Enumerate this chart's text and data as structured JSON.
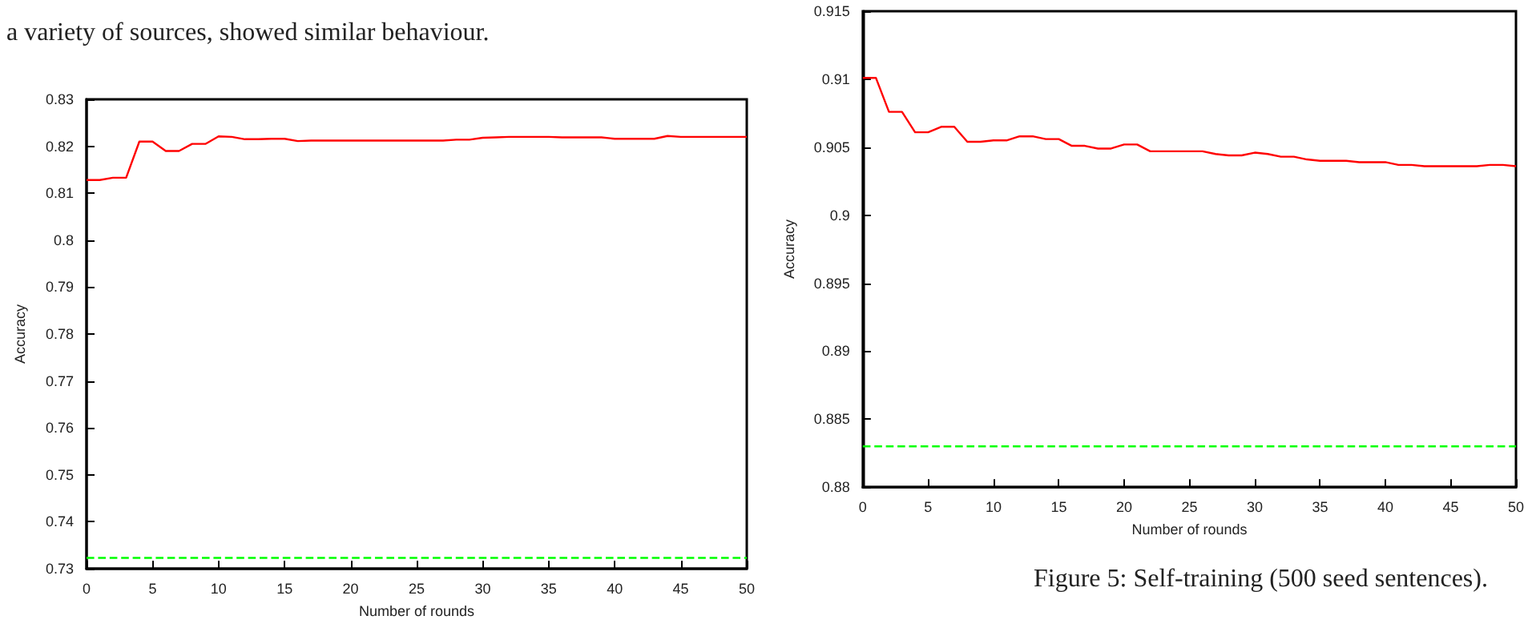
{
  "chart_data": [
    {
      "type": "line",
      "xlabel": "Number of rounds",
      "ylabel": "Accuracy",
      "annotations": [
        "a variety of sources, showed similar behaviour."
      ],
      "x": [
        0,
        1,
        2,
        3,
        4,
        5,
        6,
        7,
        8,
        9,
        10,
        11,
        12,
        13,
        14,
        15,
        16,
        17,
        18,
        19,
        20,
        21,
        22,
        23,
        24,
        25,
        26,
        27,
        28,
        29,
        30,
        31,
        32,
        33,
        34,
        35,
        36,
        37,
        38,
        39,
        40,
        41,
        42,
        43,
        44,
        45,
        46,
        47,
        48,
        49,
        50
      ],
      "series": [
        {
          "color": "#ff0000",
          "line_style": "solid",
          "values": [
            0.8128,
            0.8128,
            0.8133,
            0.8133,
            0.821,
            0.821,
            0.819,
            0.819,
            0.8205,
            0.8205,
            0.8221,
            0.822,
            0.8215,
            0.8215,
            0.8216,
            0.8216,
            0.8211,
            0.8212,
            0.8212,
            0.8212,
            0.8212,
            0.8212,
            0.8212,
            0.8212,
            0.8212,
            0.8212,
            0.8212,
            0.8212,
            0.8214,
            0.8214,
            0.8218,
            0.8219,
            0.822,
            0.822,
            0.822,
            0.822,
            0.8219,
            0.8219,
            0.8219,
            0.8219,
            0.8216,
            0.8216,
            0.8216,
            0.8216,
            0.8222,
            0.822,
            0.822,
            0.822,
            0.822,
            0.822,
            0.822
          ]
        },
        {
          "color": "#00ff00",
          "line_style": "dashed",
          "values": [
            0.7323,
            0.7323,
            0.7323,
            0.7323,
            0.7323,
            0.7323,
            0.7323,
            0.7323,
            0.7323,
            0.7323,
            0.7323,
            0.7323,
            0.7323,
            0.7323,
            0.7323,
            0.7323,
            0.7323,
            0.7323,
            0.7323,
            0.7323,
            0.7323,
            0.7323,
            0.7323,
            0.7323,
            0.7323,
            0.7323,
            0.7323,
            0.7323,
            0.7323,
            0.7323,
            0.7323,
            0.7323,
            0.7323,
            0.7323,
            0.7323,
            0.7323,
            0.7323,
            0.7323,
            0.7323,
            0.7323,
            0.7323,
            0.7323,
            0.7323,
            0.7323,
            0.7323,
            0.7323,
            0.7323,
            0.7323,
            0.7323,
            0.7323,
            0.7323
          ]
        }
      ],
      "xlim": [
        0,
        50
      ],
      "xticks": [
        0,
        5,
        10,
        15,
        20,
        25,
        30,
        35,
        40,
        45,
        50
      ],
      "ylim": [
        0.73,
        0.83
      ],
      "yticks": [
        0.73,
        0.74,
        0.75,
        0.76,
        0.77,
        0.78,
        0.79,
        0.8,
        0.81,
        0.82,
        0.83
      ],
      "grid": false,
      "marker": "none"
    },
    {
      "type": "line",
      "xlabel": "Number of rounds",
      "ylabel": "Accuracy",
      "annotations": [
        "Figure 5: Self-training (500 seed sentences)."
      ],
      "x": [
        0,
        1,
        2,
        3,
        4,
        5,
        6,
        7,
        8,
        9,
        10,
        11,
        12,
        13,
        14,
        15,
        16,
        17,
        18,
        19,
        20,
        21,
        22,
        23,
        24,
        25,
        26,
        27,
        28,
        29,
        30,
        31,
        32,
        33,
        34,
        35,
        36,
        37,
        38,
        39,
        40,
        41,
        42,
        43,
        44,
        45,
        46,
        47,
        48,
        49,
        50
      ],
      "series": [
        {
          "color": "#ff0000",
          "line_style": "solid",
          "values": [
            0.9101,
            0.9101,
            0.9076,
            0.9076,
            0.9061,
            0.9061,
            0.9065,
            0.9065,
            0.9054,
            0.9054,
            0.9055,
            0.9055,
            0.9058,
            0.9058,
            0.9056,
            0.9056,
            0.9051,
            0.9051,
            0.9049,
            0.9049,
            0.9052,
            0.9052,
            0.9047,
            0.9047,
            0.9047,
            0.9047,
            0.9047,
            0.9045,
            0.9044,
            0.9044,
            0.9046,
            0.9045,
            0.9043,
            0.9043,
            0.9041,
            0.904,
            0.904,
            0.904,
            0.9039,
            0.9039,
            0.9039,
            0.9037,
            0.9037,
            0.9036,
            0.9036,
            0.9036,
            0.9036,
            0.9036,
            0.9037,
            0.9037,
            0.9036
          ]
        },
        {
          "color": "#00ff00",
          "line_style": "dashed",
          "values": [
            0.883,
            0.883,
            0.883,
            0.883,
            0.883,
            0.883,
            0.883,
            0.883,
            0.883,
            0.883,
            0.883,
            0.883,
            0.883,
            0.883,
            0.883,
            0.883,
            0.883,
            0.883,
            0.883,
            0.883,
            0.883,
            0.883,
            0.883,
            0.883,
            0.883,
            0.883,
            0.883,
            0.883,
            0.883,
            0.883,
            0.883,
            0.883,
            0.883,
            0.883,
            0.883,
            0.883,
            0.883,
            0.883,
            0.883,
            0.883,
            0.883,
            0.883,
            0.883,
            0.883,
            0.883,
            0.883,
            0.883,
            0.883,
            0.883,
            0.883,
            0.883
          ]
        }
      ],
      "xlim": [
        0,
        50
      ],
      "xticks": [
        0,
        5,
        10,
        15,
        20,
        25,
        30,
        35,
        40,
        45,
        50
      ],
      "ylim": [
        0.88,
        0.915
      ],
      "yticks": [
        0.88,
        0.885,
        0.89,
        0.895,
        0.9,
        0.905,
        0.91,
        0.915
      ],
      "grid": false,
      "marker": "none"
    }
  ]
}
